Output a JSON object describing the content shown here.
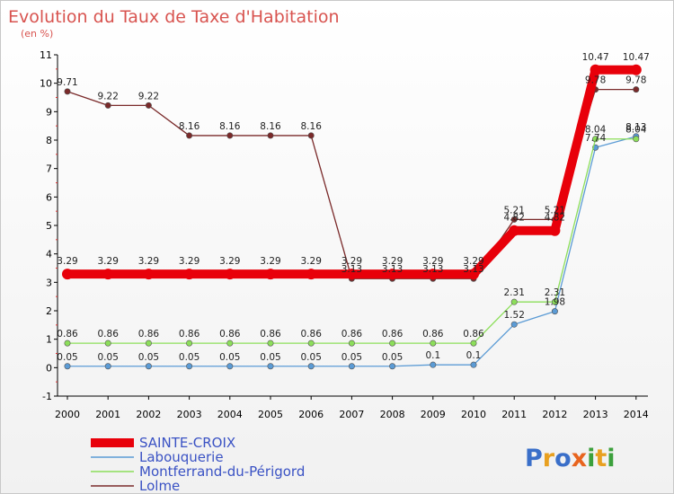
{
  "chart_data": {
    "type": "line",
    "title": "Evolution du Taux de Taxe d'Habitation",
    "subtitle": "(en %)",
    "x": [
      "2000",
      "2001",
      "2002",
      "2003",
      "2004",
      "2005",
      "2006",
      "2007",
      "2008",
      "2009",
      "2010",
      "2011",
      "2012",
      "2013",
      "2014"
    ],
    "ylim": [
      -1,
      11
    ],
    "yticks": [
      "-1",
      "0",
      "1",
      "2",
      "3",
      "4",
      "5",
      "6",
      "7",
      "8",
      "9",
      "10",
      "11"
    ],
    "grid": false,
    "legend_position": "bottom-left",
    "series": [
      {
        "name": "SAINTE-CROIX",
        "color": "#e8000a",
        "values": [
          3.29,
          3.29,
          3.29,
          3.29,
          3.29,
          3.29,
          3.29,
          3.29,
          3.29,
          3.29,
          3.29,
          4.82,
          4.82,
          10.47,
          10.47
        ],
        "labels": [
          "3.29",
          "3.29",
          "3.29",
          "3.29",
          "3.29",
          "3.29",
          "3.29",
          "3.29",
          "3.29",
          "3.29",
          "3.29",
          "4.82",
          "4.82",
          "10.47",
          "10.47"
        ]
      },
      {
        "name": "Labouquerie",
        "color": "#5b9bd5",
        "values": [
          0.05,
          0.05,
          0.05,
          0.05,
          0.05,
          0.05,
          0.05,
          0.05,
          0.05,
          0.1,
          0.1,
          1.52,
          1.98,
          7.74,
          8.13
        ],
        "labels": [
          "0.05",
          "0.05",
          "0.05",
          "0.05",
          "0.05",
          "0.05",
          "0.05",
          "0.05",
          "0.05",
          "0.1",
          "0.1",
          "1.52",
          "1.98",
          "7.74",
          "8.13"
        ]
      },
      {
        "name": "Montferrand-du-Périgord",
        "color": "#8cde5a",
        "values": [
          0.86,
          0.86,
          0.86,
          0.86,
          0.86,
          0.86,
          0.86,
          0.86,
          0.86,
          0.86,
          0.86,
          2.31,
          2.31,
          8.04,
          8.04
        ],
        "labels": [
          "0.86",
          "0.86",
          "0.86",
          "0.86",
          "0.86",
          "0.86",
          "0.86",
          "0.86",
          "0.86",
          "0.86",
          "0.86",
          "2.31",
          "2.31",
          "8.04",
          "8.04"
        ]
      },
      {
        "name": "Lolme",
        "color": "#7a2a2a",
        "values": [
          9.71,
          9.22,
          9.22,
          8.16,
          8.16,
          8.16,
          8.16,
          3.13,
          3.13,
          3.13,
          3.13,
          5.21,
          5.21,
          9.78,
          9.78
        ],
        "labels": [
          "9.71",
          "9.22",
          "9.22",
          "8.16",
          "8.16",
          "8.16",
          "8.16",
          "3.13",
          "3.13",
          "3.13",
          "3.13",
          "5.21",
          "5.21",
          "9.78",
          "9.78"
        ]
      }
    ]
  },
  "logo": {
    "text": "Proxiti"
  }
}
